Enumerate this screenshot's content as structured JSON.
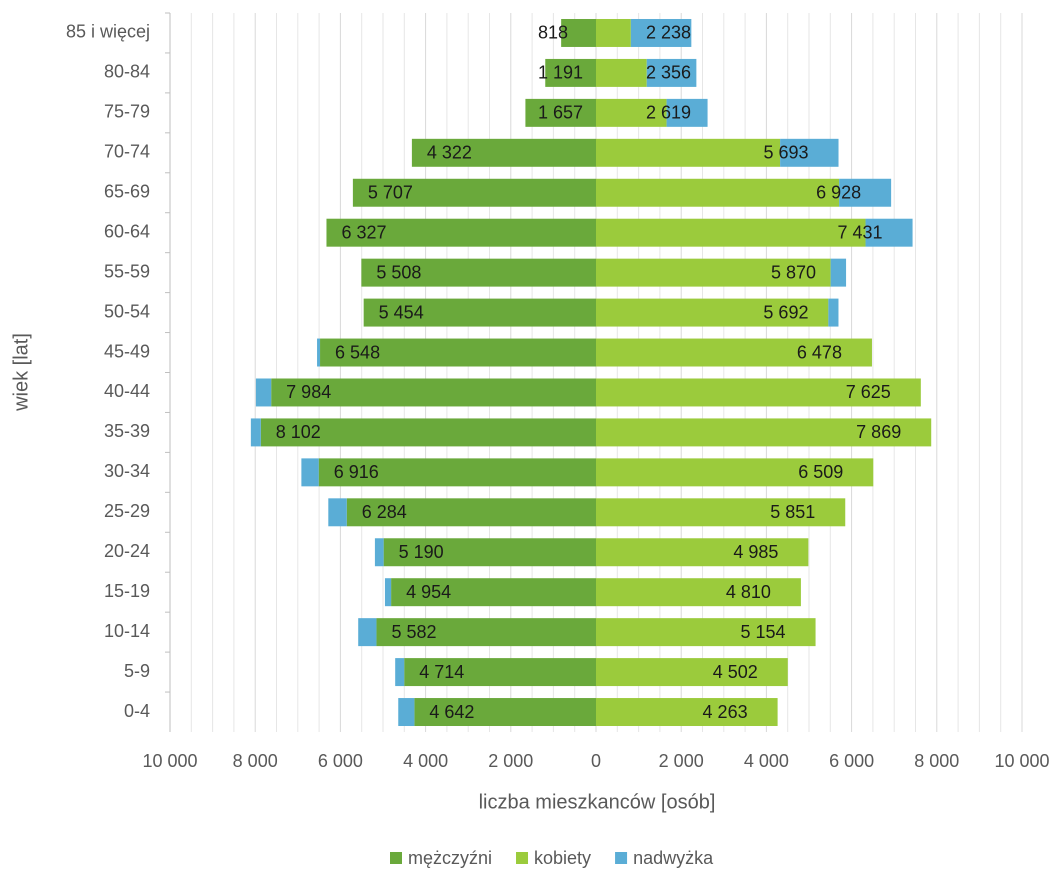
{
  "chart_data": {
    "type": "pyramid",
    "categories": [
      "85 i więcej",
      "80-84",
      "75-79",
      "70-74",
      "65-69",
      "60-64",
      "55-59",
      "50-54",
      "45-49",
      "40-44",
      "35-39",
      "30-34",
      "25-29",
      "20-24",
      "15-19",
      "10-14",
      "5-9",
      "0-4"
    ],
    "series": [
      {
        "name": "mężczyźni",
        "color": "#6aa93b",
        "values": [
          818,
          1191,
          1657,
          4322,
          5707,
          6327,
          5508,
          5454,
          6548,
          7984,
          8102,
          6916,
          6284,
          5190,
          4954,
          5582,
          4714,
          4642
        ],
        "value_labels": [
          "818",
          "1 191",
          "1 657",
          "4 322",
          "5 707",
          "6 327",
          "5 508",
          "5 454",
          "6 548",
          "7 984",
          "8 102",
          "6 916",
          "6 284",
          "5 190",
          "4 954",
          "5 582",
          "4 714",
          "4 642"
        ]
      },
      {
        "name": "kobiety",
        "color": "#9bcb3c",
        "values": [
          2238,
          2356,
          2619,
          5693,
          6928,
          7431,
          5870,
          5692,
          6478,
          7625,
          7869,
          6509,
          5851,
          4985,
          4810,
          5154,
          4502,
          4263
        ],
        "value_labels": [
          "2 238",
          "2 356",
          "2 619",
          "5 693",
          "6 928",
          "7 431",
          "5 870",
          "5 692",
          "6 478",
          "7 625",
          "7 869",
          "6 509",
          "5 851",
          "4 985",
          "4 810",
          "5 154",
          "4 502",
          "4 263"
        ]
      },
      {
        "name": "nadwyżka",
        "color": "#5aadd6"
      }
    ],
    "xlabel": "liczba mieszkanców [osób]",
    "ylabel": "wiek [lat]",
    "xlim": [
      -10000,
      10000
    ],
    "xticks": [
      {
        "value": -10000,
        "label": "10 000"
      },
      {
        "value": -8000,
        "label": "8 000"
      },
      {
        "value": -6000,
        "label": "6 000"
      },
      {
        "value": -4000,
        "label": "4 000"
      },
      {
        "value": -2000,
        "label": "2 000"
      },
      0,
      {
        "value": 2000,
        "label": "2 000"
      },
      {
        "value": 4000,
        "label": "4 000"
      },
      {
        "value": 6000,
        "label": "6 000"
      },
      {
        "value": 8000,
        "label": "8 000"
      },
      {
        "value": 10000,
        "label": "10 000"
      }
    ],
    "grid": true,
    "legend": "bottom"
  }
}
